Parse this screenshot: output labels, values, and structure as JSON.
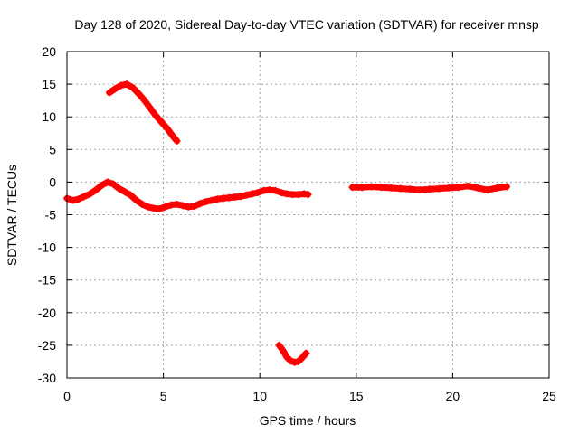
{
  "chart_data": {
    "type": "scatter",
    "title": "Day 128 of 2020, Sidereal Day-to-day VTEC variation (SDTVAR) for receiver mnsp",
    "xlabel": "GPS time / hours",
    "ylabel": "SDTVAR / TECUs",
    "xlim": [
      0,
      25
    ],
    "ylim": [
      -30,
      20
    ],
    "xticks": [
      0,
      5,
      10,
      15,
      20,
      25
    ],
    "yticks": [
      -30,
      -25,
      -20,
      -15,
      -10,
      -5,
      0,
      5,
      10,
      15,
      20
    ],
    "grid": true,
    "marker": "+",
    "color": "#ff0000",
    "series": [
      {
        "name": "segment-1",
        "x": [
          0.0,
          0.3,
          0.6,
          0.9,
          1.2,
          1.5,
          1.8,
          2.1,
          2.4,
          2.7,
          3.0,
          3.3,
          3.6,
          3.9,
          4.2,
          4.5,
          4.8,
          5.1,
          5.4,
          5.7,
          6.0,
          6.3,
          6.6,
          6.9,
          7.2,
          7.5,
          7.8,
          8.1,
          8.4,
          8.7,
          9.0,
          9.3,
          9.6,
          9.9,
          10.2,
          10.5,
          10.8,
          11.1,
          11.4,
          11.7,
          12.0,
          12.3,
          12.5
        ],
        "y": [
          -2.5,
          -2.8,
          -2.6,
          -2.2,
          -1.8,
          -1.2,
          -0.5,
          0.0,
          -0.3,
          -1.0,
          -1.5,
          -2.0,
          -2.8,
          -3.4,
          -3.8,
          -4.0,
          -4.1,
          -3.8,
          -3.5,
          -3.4,
          -3.6,
          -3.8,
          -3.7,
          -3.3,
          -3.0,
          -2.8,
          -2.6,
          -2.5,
          -2.4,
          -2.3,
          -2.2,
          -2.0,
          -1.8,
          -1.6,
          -1.3,
          -1.2,
          -1.3,
          -1.6,
          -1.8,
          -1.9,
          -1.9,
          -1.8,
          -1.9
        ]
      },
      {
        "name": "segment-2",
        "x": [
          2.2,
          2.5,
          2.8,
          3.1,
          3.4,
          3.7,
          4.0,
          4.3,
          4.6,
          4.9,
          5.2,
          5.5,
          5.7
        ],
        "y": [
          13.7,
          14.3,
          14.8,
          15.0,
          14.5,
          13.6,
          12.6,
          11.4,
          10.2,
          9.2,
          8.2,
          7.0,
          6.3
        ]
      },
      {
        "name": "segment-3",
        "x": [
          11.0,
          11.2,
          11.4,
          11.6,
          11.8,
          12.0,
          12.2,
          12.4
        ],
        "y": [
          -25.0,
          -25.8,
          -26.8,
          -27.4,
          -27.6,
          -27.5,
          -26.9,
          -26.2
        ]
      },
      {
        "name": "segment-4",
        "x": [
          14.8,
          15.3,
          15.8,
          16.3,
          16.8,
          17.3,
          17.8,
          18.3,
          18.8,
          19.3,
          19.8,
          20.3,
          20.8,
          21.3,
          21.8,
          22.3,
          22.8
        ],
        "y": [
          -0.8,
          -0.8,
          -0.7,
          -0.8,
          -0.9,
          -1.0,
          -1.1,
          -1.2,
          -1.1,
          -1.0,
          -0.9,
          -0.8,
          -0.6,
          -0.9,
          -1.2,
          -0.9,
          -0.7
        ]
      }
    ]
  }
}
